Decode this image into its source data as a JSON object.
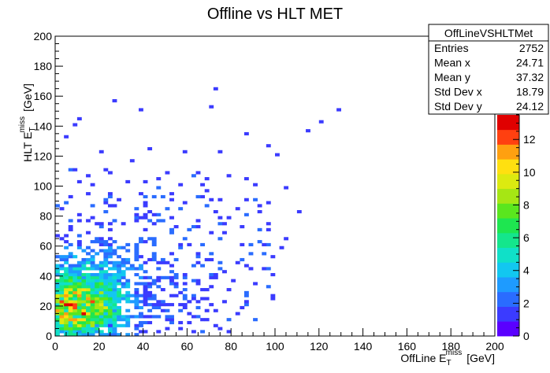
{
  "chart_data": {
    "type": "heatmap",
    "title": "Offline vs HLT  MET",
    "xlabel": {
      "main": "OffLine E",
      "sub": "T",
      "sup": "miss",
      "unit": "[GeV]"
    },
    "ylabel": {
      "main": "HLT E",
      "sub": "T",
      "sup": "miss",
      "unit": "[GeV]"
    },
    "xlim": [
      0,
      200
    ],
    "ylim": [
      0,
      200
    ],
    "x_ticks": [
      0,
      20,
      40,
      60,
      80,
      100,
      120,
      140,
      160,
      180,
      200
    ],
    "y_ticks": [
      0,
      20,
      40,
      60,
      80,
      100,
      120,
      140,
      160,
      180,
      200
    ],
    "bin_width": 2,
    "color_scale": {
      "min": 0,
      "max": 13.5,
      "ticks": [
        0,
        2,
        4,
        6,
        8,
        10,
        12
      ],
      "palette": [
        "#5a00ff",
        "#3b3bff",
        "#2a6cff",
        "#1e9bff",
        "#12c7f0",
        "#10e0c8",
        "#14e68c",
        "#1ee650",
        "#5ae61e",
        "#a6e614",
        "#dcea10",
        "#ffe010",
        "#ffa010",
        "#ff4010",
        "#e00000"
      ]
    },
    "stats": {
      "name": "OffLineVSHLTMet",
      "rows": [
        {
          "label": "Entries",
          "value": "2752"
        },
        {
          "label": "Mean x",
          "value": "24.71"
        },
        {
          "label": "Mean y",
          "value": "37.32"
        },
        {
          "label": "Std Dev x",
          "value": "18.79"
        },
        {
          "label": "Std Dev y",
          "value": "24.12"
        }
      ]
    },
    "outliers": [
      [
        72,
        164
      ],
      [
        70,
        152
      ],
      [
        26,
        156
      ],
      [
        38,
        150
      ],
      [
        128,
        150
      ],
      [
        10,
        144
      ],
      [
        8,
        140
      ],
      [
        120,
        142
      ],
      [
        114,
        136
      ],
      [
        86,
        134
      ],
      [
        4,
        132
      ],
      [
        96,
        126
      ],
      [
        20,
        122
      ],
      [
        42,
        124
      ],
      [
        58,
        122
      ],
      [
        74,
        122
      ],
      [
        100,
        120
      ],
      [
        34,
        116
      ],
      [
        8,
        110
      ],
      [
        22,
        110
      ],
      [
        64,
        108
      ],
      [
        78,
        106
      ],
      [
        86,
        104
      ],
      [
        90,
        100
      ],
      [
        104,
        98
      ],
      [
        96,
        88
      ],
      [
        110,
        82
      ],
      [
        92,
        82
      ],
      [
        78,
        78
      ],
      [
        84,
        72
      ],
      [
        96,
        70
      ],
      [
        104,
        64
      ],
      [
        102,
        58
      ],
      [
        98,
        52
      ],
      [
        94,
        60
      ],
      [
        88,
        44
      ],
      [
        76,
        42
      ],
      [
        80,
        36
      ],
      [
        90,
        34
      ],
      [
        68,
        30
      ],
      [
        66,
        24
      ],
      [
        70,
        20
      ],
      [
        84,
        18
      ],
      [
        72,
        16
      ],
      [
        60,
        14
      ],
      [
        50,
        10
      ],
      [
        56,
        8
      ],
      [
        62,
        12
      ]
    ]
  }
}
